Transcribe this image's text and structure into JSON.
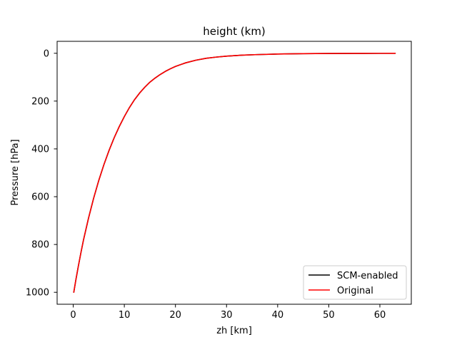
{
  "chart_data": {
    "type": "line",
    "title": "height (km)",
    "xlabel": "zh [km]",
    "ylabel": "Pressure [hPa]",
    "xlim": [
      -3.15,
      66.15
    ],
    "ylim": [
      1050,
      -50
    ],
    "y_inverted": true,
    "xticks": [
      0,
      10,
      20,
      30,
      40,
      50,
      60
    ],
    "yticks": [
      0,
      200,
      400,
      600,
      800,
      1000
    ],
    "grid": false,
    "legend_position": "lower-right",
    "series": [
      {
        "name": "SCM-enabled",
        "color": "#000000",
        "x": [
          0.11,
          0.5,
          1.0,
          1.5,
          2.0,
          3.0,
          4.0,
          5.0,
          6.0,
          7.0,
          8.0,
          9.0,
          10.0,
          11.0,
          12.0,
          13.0,
          14.0,
          15.0,
          16.0,
          17.0,
          18.0,
          19.0,
          20.0,
          22.0,
          24.0,
          26.0,
          28.0,
          30.0,
          33.0,
          36.0,
          40.0,
          45.0,
          50.0,
          55.0,
          60.0,
          63.0
        ],
        "y": [
          1000,
          950,
          891,
          835,
          782,
          689,
          606,
          532,
          466,
          407,
          354,
          307,
          265,
          227,
          194,
          166,
          142,
          121,
          104,
          89,
          76,
          65,
          55,
          40,
          29,
          21,
          16,
          12,
          8,
          5.5,
          3.2,
          1.6,
          0.9,
          0.5,
          0.3,
          0.2
        ]
      },
      {
        "name": "Original",
        "color": "#ff0000",
        "x": [
          0.11,
          0.5,
          1.0,
          1.5,
          2.0,
          3.0,
          4.0,
          5.0,
          6.0,
          7.0,
          8.0,
          9.0,
          10.0,
          11.0,
          12.0,
          13.0,
          14.0,
          15.0,
          16.0,
          17.0,
          18.0,
          19.0,
          20.0,
          22.0,
          24.0,
          26.0,
          28.0,
          30.0,
          33.0,
          36.0,
          40.0,
          45.0,
          50.0,
          55.0,
          60.0,
          63.0
        ],
        "y": [
          1000,
          950,
          891,
          835,
          782,
          689,
          606,
          532,
          466,
          407,
          354,
          307,
          265,
          227,
          194,
          166,
          142,
          121,
          104,
          89,
          76,
          65,
          55,
          40,
          29,
          21,
          16,
          12,
          8,
          5.5,
          3.2,
          1.6,
          0.9,
          0.5,
          0.3,
          0.2
        ]
      }
    ]
  }
}
